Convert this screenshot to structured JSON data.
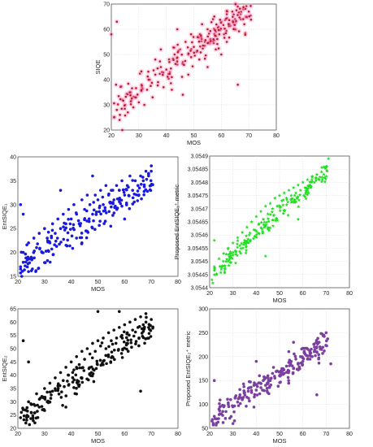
{
  "chart_data": [
    {
      "id": "p1",
      "type": "scatter",
      "xlabel": "MOS",
      "ylabel": "SIQE",
      "xlim": [
        20,
        80
      ],
      "ylim": [
        20,
        70
      ],
      "xticks": [
        "20",
        "30",
        "40",
        "50",
        "60",
        "70",
        "80"
      ],
      "yticks": [
        "20",
        "30",
        "40",
        "50",
        "60",
        "70"
      ],
      "color": "#b22222",
      "marker": "dot",
      "grid": true,
      "trend": {
        "slope": 0.72,
        "intercept": 16.0,
        "spread": 5.5
      },
      "points": [
        [
          21,
          25
        ],
        [
          22,
          28
        ],
        [
          23,
          24
        ],
        [
          24,
          32
        ],
        [
          25,
          30
        ],
        [
          26,
          27
        ],
        [
          27,
          35
        ],
        [
          28,
          29
        ],
        [
          29,
          33
        ],
        [
          30,
          31
        ],
        [
          31,
          38
        ],
        [
          32,
          30
        ],
        [
          33,
          36
        ],
        [
          34,
          40
        ],
        [
          35,
          33
        ],
        [
          36,
          42
        ],
        [
          37,
          39
        ],
        [
          38,
          45
        ],
        [
          39,
          37
        ],
        [
          40,
          44
        ],
        [
          41,
          48
        ],
        [
          42,
          41
        ],
        [
          43,
          50
        ],
        [
          44,
          46
        ],
        [
          45,
          52
        ],
        [
          46,
          47
        ],
        [
          47,
          55
        ],
        [
          48,
          50
        ],
        [
          49,
          58
        ],
        [
          50,
          53
        ],
        [
          51,
          51
        ],
        [
          52,
          57
        ],
        [
          53,
          62
        ],
        [
          54,
          55
        ],
        [
          55,
          60
        ],
        [
          56,
          56
        ],
        [
          57,
          64
        ],
        [
          58,
          59
        ],
        [
          59,
          61
        ],
        [
          60,
          63
        ],
        [
          61,
          58
        ],
        [
          62,
          66
        ],
        [
          63,
          62
        ],
        [
          64,
          67
        ],
        [
          65,
          64
        ],
        [
          66,
          69
        ],
        [
          67,
          66
        ],
        [
          68,
          68
        ],
        [
          69,
          65
        ],
        [
          70,
          67
        ],
        [
          44,
          60
        ],
        [
          48,
          42
        ],
        [
          55,
          45
        ],
        [
          58,
          52
        ],
        [
          62,
          55
        ],
        [
          38,
          52
        ],
        [
          36,
          48
        ],
        [
          66,
          38
        ],
        [
          24,
          20
        ],
        [
          20,
          58
        ],
        [
          22,
          63
        ],
        [
          46,
          34
        ],
        [
          52,
          48
        ],
        [
          60,
          50
        ],
        [
          42,
          36
        ],
        [
          65,
          60
        ]
      ]
    },
    {
      "id": "p2",
      "type": "scatter",
      "xlabel": "MOS",
      "ylabel": "EntSIQE₁",
      "xlim": [
        20,
        80
      ],
      "ylim": [
        15,
        40
      ],
      "xticks": [
        "20",
        "30",
        "40",
        "50",
        "60",
        "70",
        "80"
      ],
      "yticks": [
        "15",
        "20",
        "25",
        "30",
        "35",
        "40"
      ],
      "color": "#1a1adc",
      "marker": "dot",
      "grid": false,
      "trend": {
        "slope": 0.36,
        "intercept": 9.5,
        "spread": 2.6
      },
      "points": [
        [
          21,
          17
        ],
        [
          22,
          20
        ],
        [
          23,
          18
        ],
        [
          24,
          22
        ],
        [
          25,
          19
        ],
        [
          26,
          23
        ],
        [
          27,
          21
        ],
        [
          28,
          24
        ],
        [
          29,
          20
        ],
        [
          30,
          25
        ],
        [
          31,
          23
        ],
        [
          32,
          22
        ],
        [
          33,
          26
        ],
        [
          34,
          24
        ],
        [
          35,
          27
        ],
        [
          36,
          25
        ],
        [
          37,
          28
        ],
        [
          38,
          26
        ],
        [
          39,
          29
        ],
        [
          40,
          27
        ],
        [
          41,
          30
        ],
        [
          42,
          28
        ],
        [
          43,
          26
        ],
        [
          44,
          31
        ],
        [
          45,
          29
        ],
        [
          46,
          32
        ],
        [
          47,
          30
        ],
        [
          48,
          28
        ],
        [
          49,
          32
        ],
        [
          50,
          31
        ],
        [
          51,
          33
        ],
        [
          52,
          30
        ],
        [
          53,
          34
        ],
        [
          54,
          32
        ],
        [
          55,
          33
        ],
        [
          56,
          31
        ],
        [
          57,
          34
        ],
        [
          58,
          33
        ],
        [
          59,
          35
        ],
        [
          60,
          32
        ],
        [
          61,
          34
        ],
        [
          62,
          36
        ],
        [
          63,
          33
        ],
        [
          64,
          35
        ],
        [
          65,
          34
        ],
        [
          66,
          36
        ],
        [
          67,
          35
        ],
        [
          68,
          37
        ],
        [
          69,
          36
        ],
        [
          70,
          37
        ],
        [
          21,
          30
        ],
        [
          22,
          28
        ],
        [
          48,
          36
        ],
        [
          60,
          27
        ],
        [
          36,
          33
        ],
        [
          44,
          22
        ],
        [
          24,
          16
        ]
      ]
    },
    {
      "id": "p3",
      "type": "scatter",
      "xlabel": "MOS",
      "ylabel": "Proposed EntSIQE₁⁺ metric",
      "xlim": [
        20,
        80
      ],
      "ylim": [
        3.0544,
        3.0549
      ],
      "xticks": [
        "20",
        "30",
        "40",
        "50",
        "60",
        "70",
        "80"
      ],
      "yticks": [
        "3.0544",
        "3.05445",
        "3.0545",
        "3.05455",
        "3.0546",
        "3.05465",
        "3.0547",
        "3.05475",
        "3.0548",
        "3.05485",
        "3.0549"
      ],
      "color": "#22dd22",
      "marker": "star",
      "grid": true,
      "trend": {
        "slope": 8e-06,
        "intercept": 3.05428,
        "spread": 3e-05
      },
      "points": [
        [
          21,
          3.05443
        ],
        [
          22,
          3.05448
        ],
        [
          23,
          3.05445
        ],
        [
          24,
          3.05451
        ],
        [
          25,
          3.05447
        ],
        [
          26,
          3.05453
        ],
        [
          27,
          3.0545
        ],
        [
          28,
          3.05455
        ],
        [
          29,
          3.05452
        ],
        [
          30,
          3.05457
        ],
        [
          31,
          3.05454
        ],
        [
          32,
          3.05459
        ],
        [
          33,
          3.05456
        ],
        [
          34,
          3.05461
        ],
        [
          35,
          3.05458
        ],
        [
          36,
          3.05463
        ],
        [
          37,
          3.0546
        ],
        [
          38,
          3.05465
        ],
        [
          39,
          3.05462
        ],
        [
          40,
          3.05467
        ],
        [
          41,
          3.05464
        ],
        [
          42,
          3.05469
        ],
        [
          43,
          3.05466
        ],
        [
          44,
          3.05471
        ],
        [
          45,
          3.05468
        ],
        [
          46,
          3.05472
        ],
        [
          47,
          3.0547
        ],
        [
          48,
          3.05474
        ],
        [
          49,
          3.05471
        ],
        [
          50,
          3.05475
        ],
        [
          51,
          3.05473
        ],
        [
          52,
          3.05476
        ],
        [
          53,
          3.05474
        ],
        [
          54,
          3.05477
        ],
        [
          55,
          3.05475
        ],
        [
          56,
          3.05478
        ],
        [
          57,
          3.05476
        ],
        [
          58,
          3.05479
        ],
        [
          59,
          3.05477
        ],
        [
          60,
          3.0548
        ],
        [
          61,
          3.05478
        ],
        [
          62,
          3.05481
        ],
        [
          63,
          3.05479
        ],
        [
          64,
          3.05482
        ],
        [
          65,
          3.0548
        ],
        [
          66,
          3.05483
        ],
        [
          67,
          3.05481
        ],
        [
          68,
          3.05484
        ],
        [
          69,
          3.05483
        ],
        [
          70,
          3.05486
        ],
        [
          71,
          3.05489
        ],
        [
          22,
          3.05458
        ],
        [
          44,
          3.05452
        ],
        [
          58,
          3.05466
        ]
      ]
    },
    {
      "id": "p4",
      "type": "scatter",
      "xlabel": "MOS",
      "ylabel": "EntSIQE₂",
      "xlim": [
        20,
        80
      ],
      "ylim": [
        20,
        65
      ],
      "xticks": [
        "20",
        "30",
        "40",
        "50",
        "60",
        "70",
        "80"
      ],
      "yticks": [
        "20",
        "25",
        "30",
        "35",
        "40",
        "45",
        "50",
        "55",
        "60",
        "65"
      ],
      "color": "#111111",
      "marker": "dot",
      "grid": false,
      "trend": {
        "slope": 0.72,
        "intercept": 8.0,
        "spread": 4.5
      },
      "points": [
        [
          21,
          24
        ],
        [
          22,
          27
        ],
        [
          23,
          22
        ],
        [
          24,
          30
        ],
        [
          25,
          26
        ],
        [
          26,
          29
        ],
        [
          27,
          33
        ],
        [
          28,
          28
        ],
        [
          29,
          32
        ],
        [
          30,
          35
        ],
        [
          31,
          30
        ],
        [
          32,
          37
        ],
        [
          33,
          34
        ],
        [
          34,
          39
        ],
        [
          35,
          36
        ],
        [
          36,
          41
        ],
        [
          37,
          38
        ],
        [
          38,
          43
        ],
        [
          39,
          40
        ],
        [
          40,
          45
        ],
        [
          41,
          42
        ],
        [
          42,
          47
        ],
        [
          43,
          44
        ],
        [
          44,
          49
        ],
        [
          45,
          46
        ],
        [
          46,
          50
        ],
        [
          47,
          48
        ],
        [
          48,
          52
        ],
        [
          49,
          49
        ],
        [
          50,
          53
        ],
        [
          51,
          51
        ],
        [
          52,
          54
        ],
        [
          53,
          50
        ],
        [
          54,
          56
        ],
        [
          55,
          53
        ],
        [
          56,
          57
        ],
        [
          57,
          54
        ],
        [
          58,
          58
        ],
        [
          59,
          55
        ],
        [
          60,
          59
        ],
        [
          61,
          56
        ],
        [
          62,
          60
        ],
        [
          63,
          57
        ],
        [
          64,
          61
        ],
        [
          65,
          58
        ],
        [
          66,
          62
        ],
        [
          67,
          59
        ],
        [
          68,
          60
        ],
        [
          69,
          58
        ],
        [
          70,
          61
        ],
        [
          22,
          53
        ],
        [
          24,
          45
        ],
        [
          50,
          64
        ],
        [
          58,
          64
        ],
        [
          66,
          34
        ],
        [
          38,
          28
        ],
        [
          44,
          39
        ]
      ]
    },
    {
      "id": "p5",
      "type": "scatter",
      "xlabel": "MOS",
      "ylabel": "Proposed EntSIQE₂⁺ metric",
      "xlim": [
        20,
        80
      ],
      "ylim": [
        50,
        300
      ],
      "xticks": [
        "20",
        "30",
        "40",
        "50",
        "60",
        "70",
        "80"
      ],
      "yticks": [
        "50",
        "100",
        "150",
        "200",
        "250",
        "300"
      ],
      "color": "#7b3fa0",
      "marker": "dot",
      "grid": true,
      "trend": {
        "slope": 3.3,
        "intercept": 0.0,
        "spread": 24
      },
      "points": [
        [
          21,
          65
        ],
        [
          22,
          75
        ],
        [
          23,
          70
        ],
        [
          24,
          90
        ],
        [
          25,
          80
        ],
        [
          26,
          95
        ],
        [
          27,
          85
        ],
        [
          28,
          100
        ],
        [
          29,
          110
        ],
        [
          30,
          95
        ],
        [
          31,
          115
        ],
        [
          32,
          105
        ],
        [
          33,
          120
        ],
        [
          34,
          110
        ],
        [
          35,
          125
        ],
        [
          36,
          115
        ],
        [
          37,
          135
        ],
        [
          38,
          125
        ],
        [
          39,
          140
        ],
        [
          40,
          130
        ],
        [
          41,
          145
        ],
        [
          42,
          135
        ],
        [
          43,
          150
        ],
        [
          44,
          140
        ],
        [
          45,
          160
        ],
        [
          46,
          150
        ],
        [
          47,
          165
        ],
        [
          48,
          155
        ],
        [
          49,
          170
        ],
        [
          50,
          160
        ],
        [
          51,
          175
        ],
        [
          52,
          165
        ],
        [
          53,
          180
        ],
        [
          54,
          170
        ],
        [
          55,
          190
        ],
        [
          56,
          175
        ],
        [
          57,
          195
        ],
        [
          58,
          185
        ],
        [
          59,
          200
        ],
        [
          60,
          190
        ],
        [
          61,
          205
        ],
        [
          62,
          195
        ],
        [
          63,
          210
        ],
        [
          64,
          200
        ],
        [
          65,
          220
        ],
        [
          66,
          210
        ],
        [
          67,
          230
        ],
        [
          68,
          215
        ],
        [
          69,
          245
        ],
        [
          70,
          250
        ],
        [
          22,
          150
        ],
        [
          56,
          230
        ],
        [
          66,
          120
        ],
        [
          72,
          185
        ],
        [
          30,
          60
        ],
        [
          40,
          190
        ]
      ]
    }
  ]
}
